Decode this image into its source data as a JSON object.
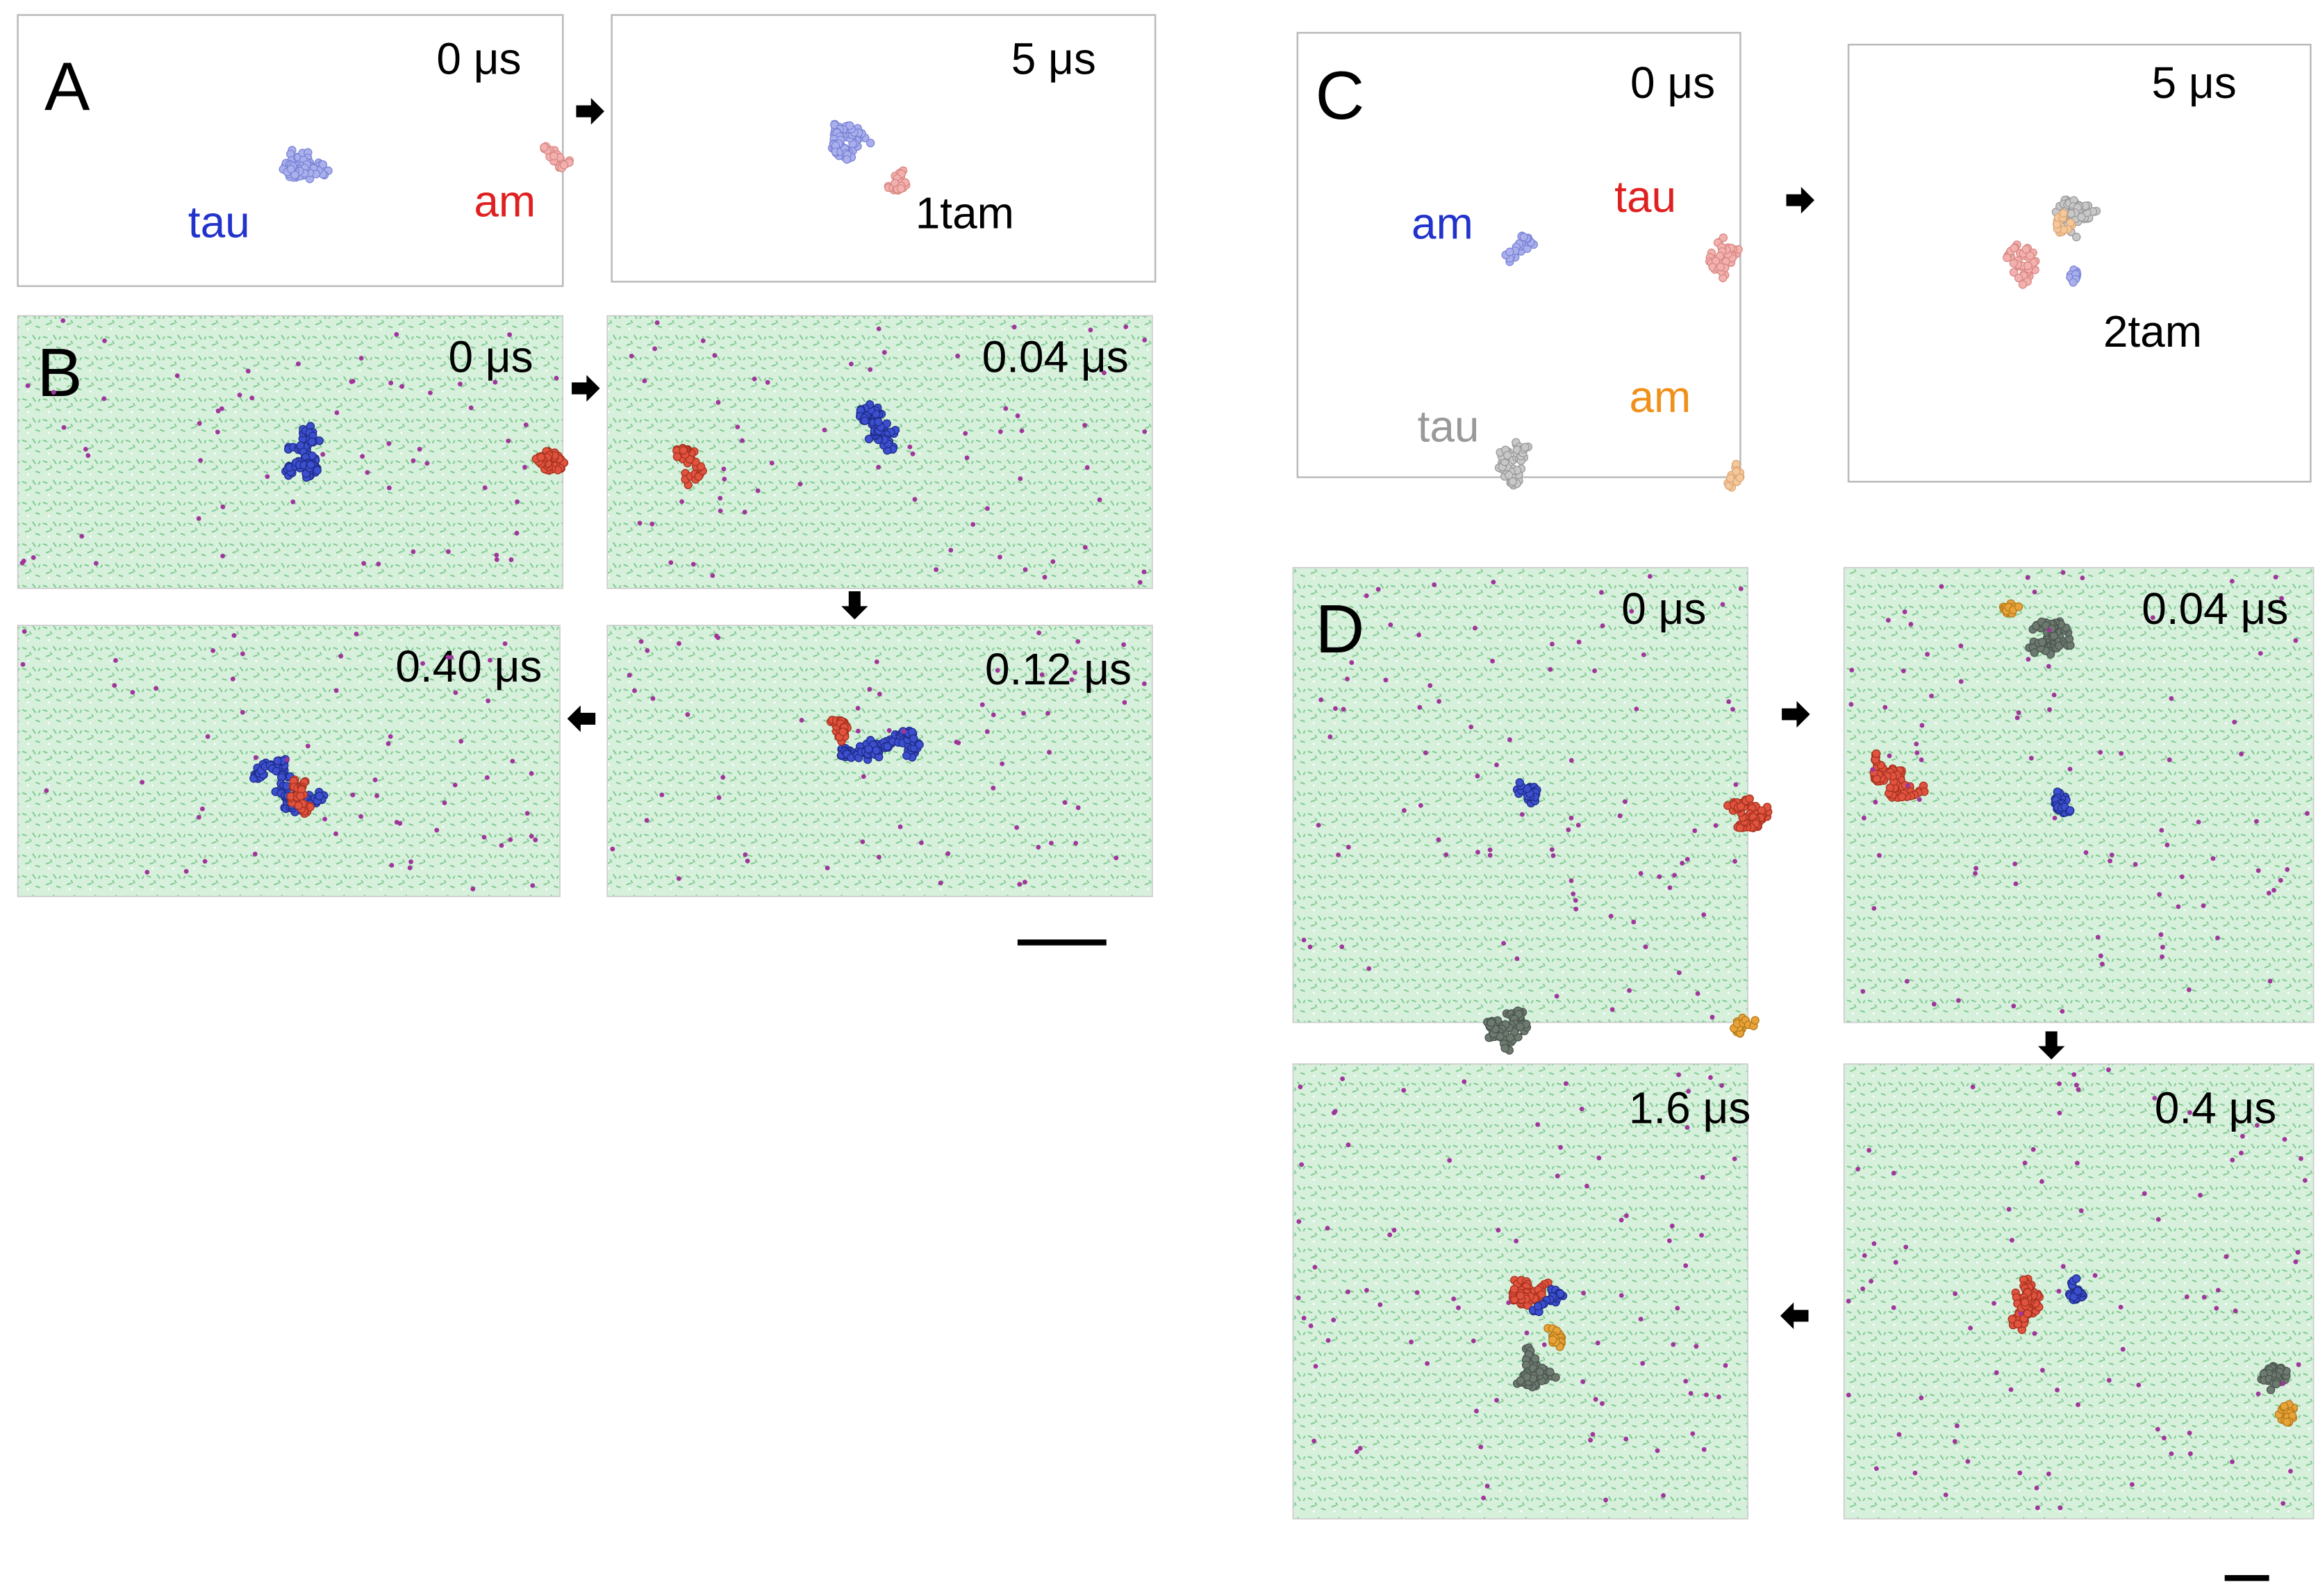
{
  "panels": [
    {
      "label": "A",
      "frames": [
        {
          "time": "0 μs",
          "labels": [
            "tau",
            "am"
          ]
        },
        {
          "time": "5 μs",
          "labels": [
            "1tam"
          ]
        }
      ]
    },
    {
      "label": "B",
      "frames": [
        {
          "time": "0 μs"
        },
        {
          "time": "0.04 μs"
        },
        {
          "time": "0.40 μs"
        },
        {
          "time": "0.12 μs"
        }
      ]
    },
    {
      "label": "C",
      "frames": [
        {
          "time": "0 μs",
          "labels": [
            "am",
            "tau",
            "tau",
            "am"
          ]
        },
        {
          "time": "5 μs",
          "labels": [
            "2tam"
          ]
        }
      ]
    },
    {
      "label": "D",
      "frames": [
        {
          "time": "0 μs"
        },
        {
          "time": "0.04 μs"
        },
        {
          "time": "1.6 μs"
        },
        {
          "time": "0.4 μs"
        }
      ]
    }
  ]
}
